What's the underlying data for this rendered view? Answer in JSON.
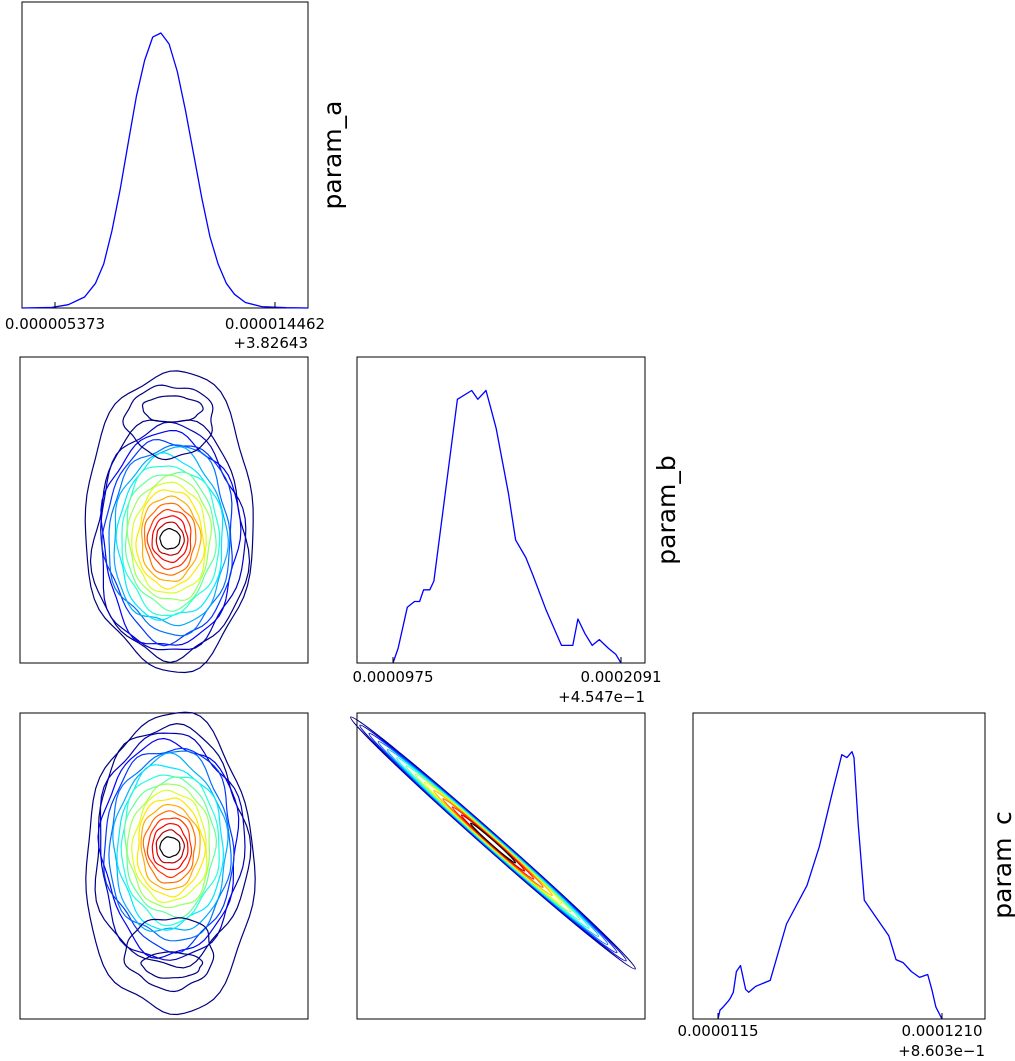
{
  "chart_data": {
    "type": "corner",
    "parameters": [
      "param_a",
      "param_b",
      "param_c"
    ],
    "colors": {
      "line": "#0000ff",
      "contour_colormap": [
        "#00007f",
        "#0000ff",
        "#007fff",
        "#00ffff",
        "#7fff7f",
        "#ffff00",
        "#ff7f00",
        "#ff0000",
        "#7f0000",
        "#000000"
      ]
    },
    "marginals": [
      {
        "param": "param_a",
        "xticks": [
          "0.000005373",
          "0.000014462"
        ],
        "xoffset": "+3.82643",
        "x": [
          3.9e-06,
          5e-06,
          5.6e-06,
          6.2e-06,
          6.6e-06,
          6.9e-06,
          7.2e-06,
          7.5e-06,
          7.8e-06,
          8.1e-06,
          8.4e-06,
          8.7e-06,
          9e-06,
          9.3e-06,
          9.6e-06,
          9.9e-06,
          1.02e-05,
          1.05e-05,
          1.08e-05,
          1.11e-05,
          1.14e-05,
          1.17e-05,
          1.21e-05,
          1.27e-05,
          1.36e-05,
          1.44e-05
        ],
        "density": [
          0.0,
          0.002,
          0.012,
          0.04,
          0.09,
          0.16,
          0.28,
          0.43,
          0.6,
          0.77,
          0.9,
          0.985,
          1.0,
          0.96,
          0.86,
          0.72,
          0.56,
          0.4,
          0.26,
          0.16,
          0.09,
          0.05,
          0.02,
          0.005,
          0.001,
          0.0
        ]
      },
      {
        "param": "param_b",
        "xticks": [
          "0.0000975",
          "0.0002091"
        ],
        "xoffset": "+4.547e−1",
        "x": [
          9.75e-05,
          0.0001,
          0.0001045,
          0.000108,
          0.0001105,
          0.0001125,
          0.0001155,
          0.0001175,
          0.000129,
          0.000136,
          0.000139,
          0.000143,
          0.000145,
          0.000148,
          0.000154,
          0.0001575,
          0.0001625,
          0.000166,
          0.0001725,
          0.0001775,
          0.00018,
          0.0001855,
          0.000188,
          0.0001915,
          0.000195,
          0.0001985,
          0.000203,
          0.0002065,
          0.0002091
        ],
        "density": [
          0.0,
          0.05,
          0.19,
          0.21,
          0.21,
          0.25,
          0.25,
          0.28,
          0.9,
          0.93,
          0.9,
          0.93,
          0.88,
          0.8,
          0.58,
          0.42,
          0.36,
          0.3,
          0.18,
          0.1,
          0.06,
          0.06,
          0.15,
          0.1,
          0.06,
          0.08,
          0.05,
          0.03,
          0.0
        ]
      },
      {
        "param": "param_c",
        "xticks": [
          "0.0000115",
          "0.0001210"
        ],
        "xoffset": "+8.603e−1",
        "x": [
          1.15e-05,
          1.25e-05,
          1.4e-05,
          1.65e-05,
          1.75e-05,
          1.9e-05,
          2.05e-05,
          2.25e-05,
          2.5e-05,
          2.65e-05,
          3e-05,
          3.7e-05,
          4.5e-05,
          5.5e-05,
          6.1e-05,
          6.8e-05,
          7.2e-05,
          7.45e-05,
          7.7e-05,
          7.8e-05,
          8e-05,
          8.3e-05,
          8.9e-05,
          9.5e-05,
          9.85e-05,
          0.000102,
          0.000106,
          0.00011,
          0.000114,
          0.000116,
          0.000118,
          0.000121
        ],
        "density": [
          0.0,
          0.03,
          0.04,
          0.06,
          0.07,
          0.09,
          0.16,
          0.18,
          0.1,
          0.09,
          0.11,
          0.13,
          0.32,
          0.45,
          0.58,
          0.78,
          0.89,
          0.88,
          0.9,
          0.88,
          0.66,
          0.4,
          0.34,
          0.28,
          0.2,
          0.19,
          0.16,
          0.14,
          0.15,
          0.1,
          0.04,
          0.0
        ]
      }
    ],
    "joint": [
      {
        "x": "param_a",
        "y": "param_b",
        "shape": "uncorrelated-elongated",
        "correlation": 0.0,
        "side_lobe": "upper"
      },
      {
        "x": "param_a",
        "y": "param_c",
        "shape": "uncorrelated-elongated",
        "correlation": 0.0,
        "side_lobe": "lower"
      },
      {
        "x": "param_b",
        "y": "param_c",
        "shape": "strong-negative",
        "correlation": -0.999
      }
    ],
    "grid": false,
    "ylabel_position": "right of diagonal"
  }
}
